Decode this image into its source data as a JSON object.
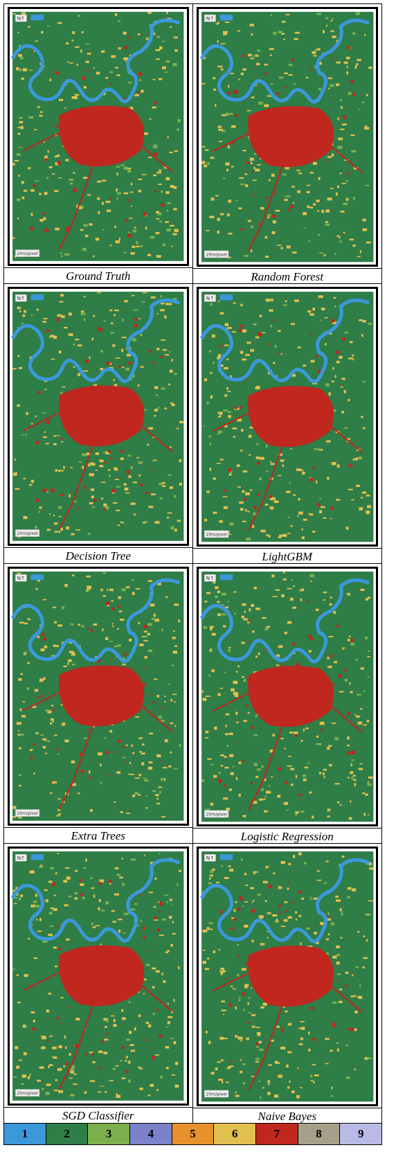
{
  "panels": [
    {
      "caption": "Ground Truth"
    },
    {
      "caption": "Random Forest"
    },
    {
      "caption": "Decision Tree"
    },
    {
      "caption": "LightGBM"
    },
    {
      "caption": "Extra Trees"
    },
    {
      "caption": "Logistic Regression"
    },
    {
      "caption": "SGD Classifier"
    },
    {
      "caption": "Naive Bayes"
    }
  ],
  "map_labels": {
    "north": "N↑",
    "scale": "20m/pixel"
  },
  "legend": [
    {
      "label": "1",
      "color": "#3b99d9"
    },
    {
      "label": "2",
      "color": "#2f7d47"
    },
    {
      "label": "3",
      "color": "#7cb04f"
    },
    {
      "label": "4",
      "color": "#7b82c9"
    },
    {
      "label": "5",
      "color": "#e8912c"
    },
    {
      "label": "6",
      "color": "#e2c04f"
    },
    {
      "label": "7",
      "color": "#c0271e"
    },
    {
      "label": "8",
      "color": "#a89f8b"
    },
    {
      "label": "9",
      "color": "#b9bae6"
    }
  ]
}
